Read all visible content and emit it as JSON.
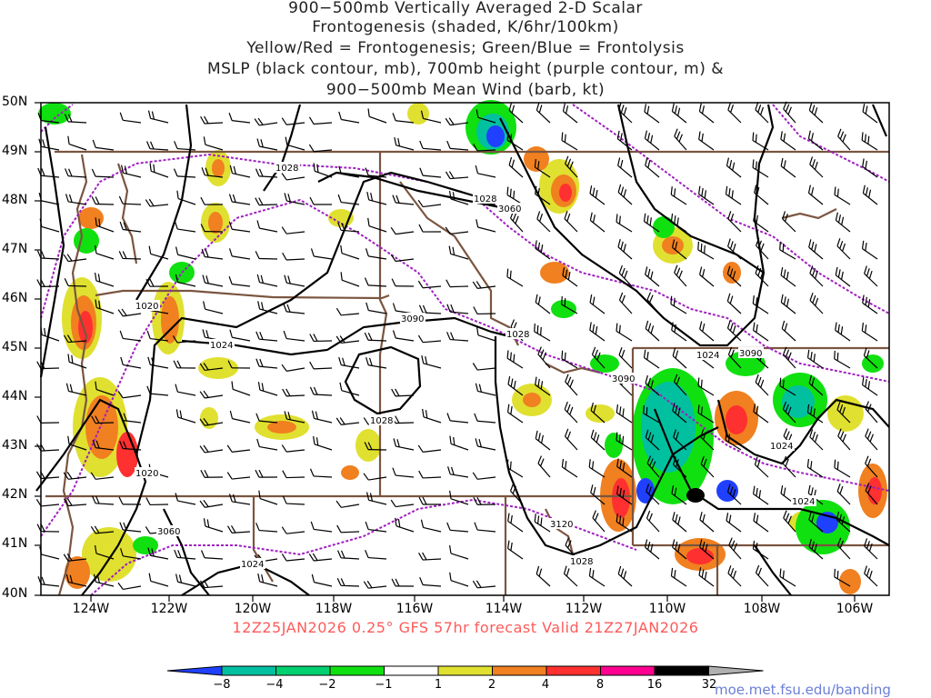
{
  "title": {
    "line1": "900−500mb Vertically Averaged 2-D Scalar",
    "line2": "Frontogenesis (shaded, K/6hr/100km)",
    "line3": "Yellow/Red = Frontogenesis;  Green/Blue = Frontolysis",
    "line4": "MSLP (black contour, mb), 700mb height (purple contour, m) &",
    "line5": "900−500mb Mean Wind (barb, kt)"
  },
  "lat_labels": [
    "50N",
    "49N",
    "48N",
    "47N",
    "46N",
    "45N",
    "44N",
    "43N",
    "42N",
    "41N",
    "40N"
  ],
  "lon_labels": [
    "124W",
    "122W",
    "120W",
    "118W",
    "116W",
    "114W",
    "112W",
    "110W",
    "108W",
    "106W"
  ],
  "forecast_text": "12Z25JAN2026 0.25° GFS 57hr forecast Valid 21Z27JAN2026",
  "colorbar": {
    "labels": [
      "−8",
      "−4",
      "−2",
      "−1",
      "1",
      "2",
      "4",
      "8",
      "16",
      "32"
    ],
    "colors": [
      "#2040ff",
      "#00c0a0",
      "#00d070",
      "#10e010",
      "#ffffff",
      "#e0e030",
      "#f08020",
      "#ff3030",
      "#ff0090",
      "#000000",
      "#b0b0b0"
    ]
  },
  "contour_labels": {
    "mslp": [
      "1028",
      "1028",
      "1020",
      "1024",
      "1028",
      "1028",
      "1024",
      "1024",
      "1024",
      "1020",
      "1024",
      "1028"
    ],
    "height": [
      "3060",
      "3090",
      "3090",
      "3060",
      "3120",
      "3090"
    ]
  },
  "credit": "moe.met.fsu.edu/banding",
  "colors": {
    "state_border": "#7a5540",
    "mslp": "#000000",
    "height": "#a020c0",
    "frame": "#000000"
  }
}
